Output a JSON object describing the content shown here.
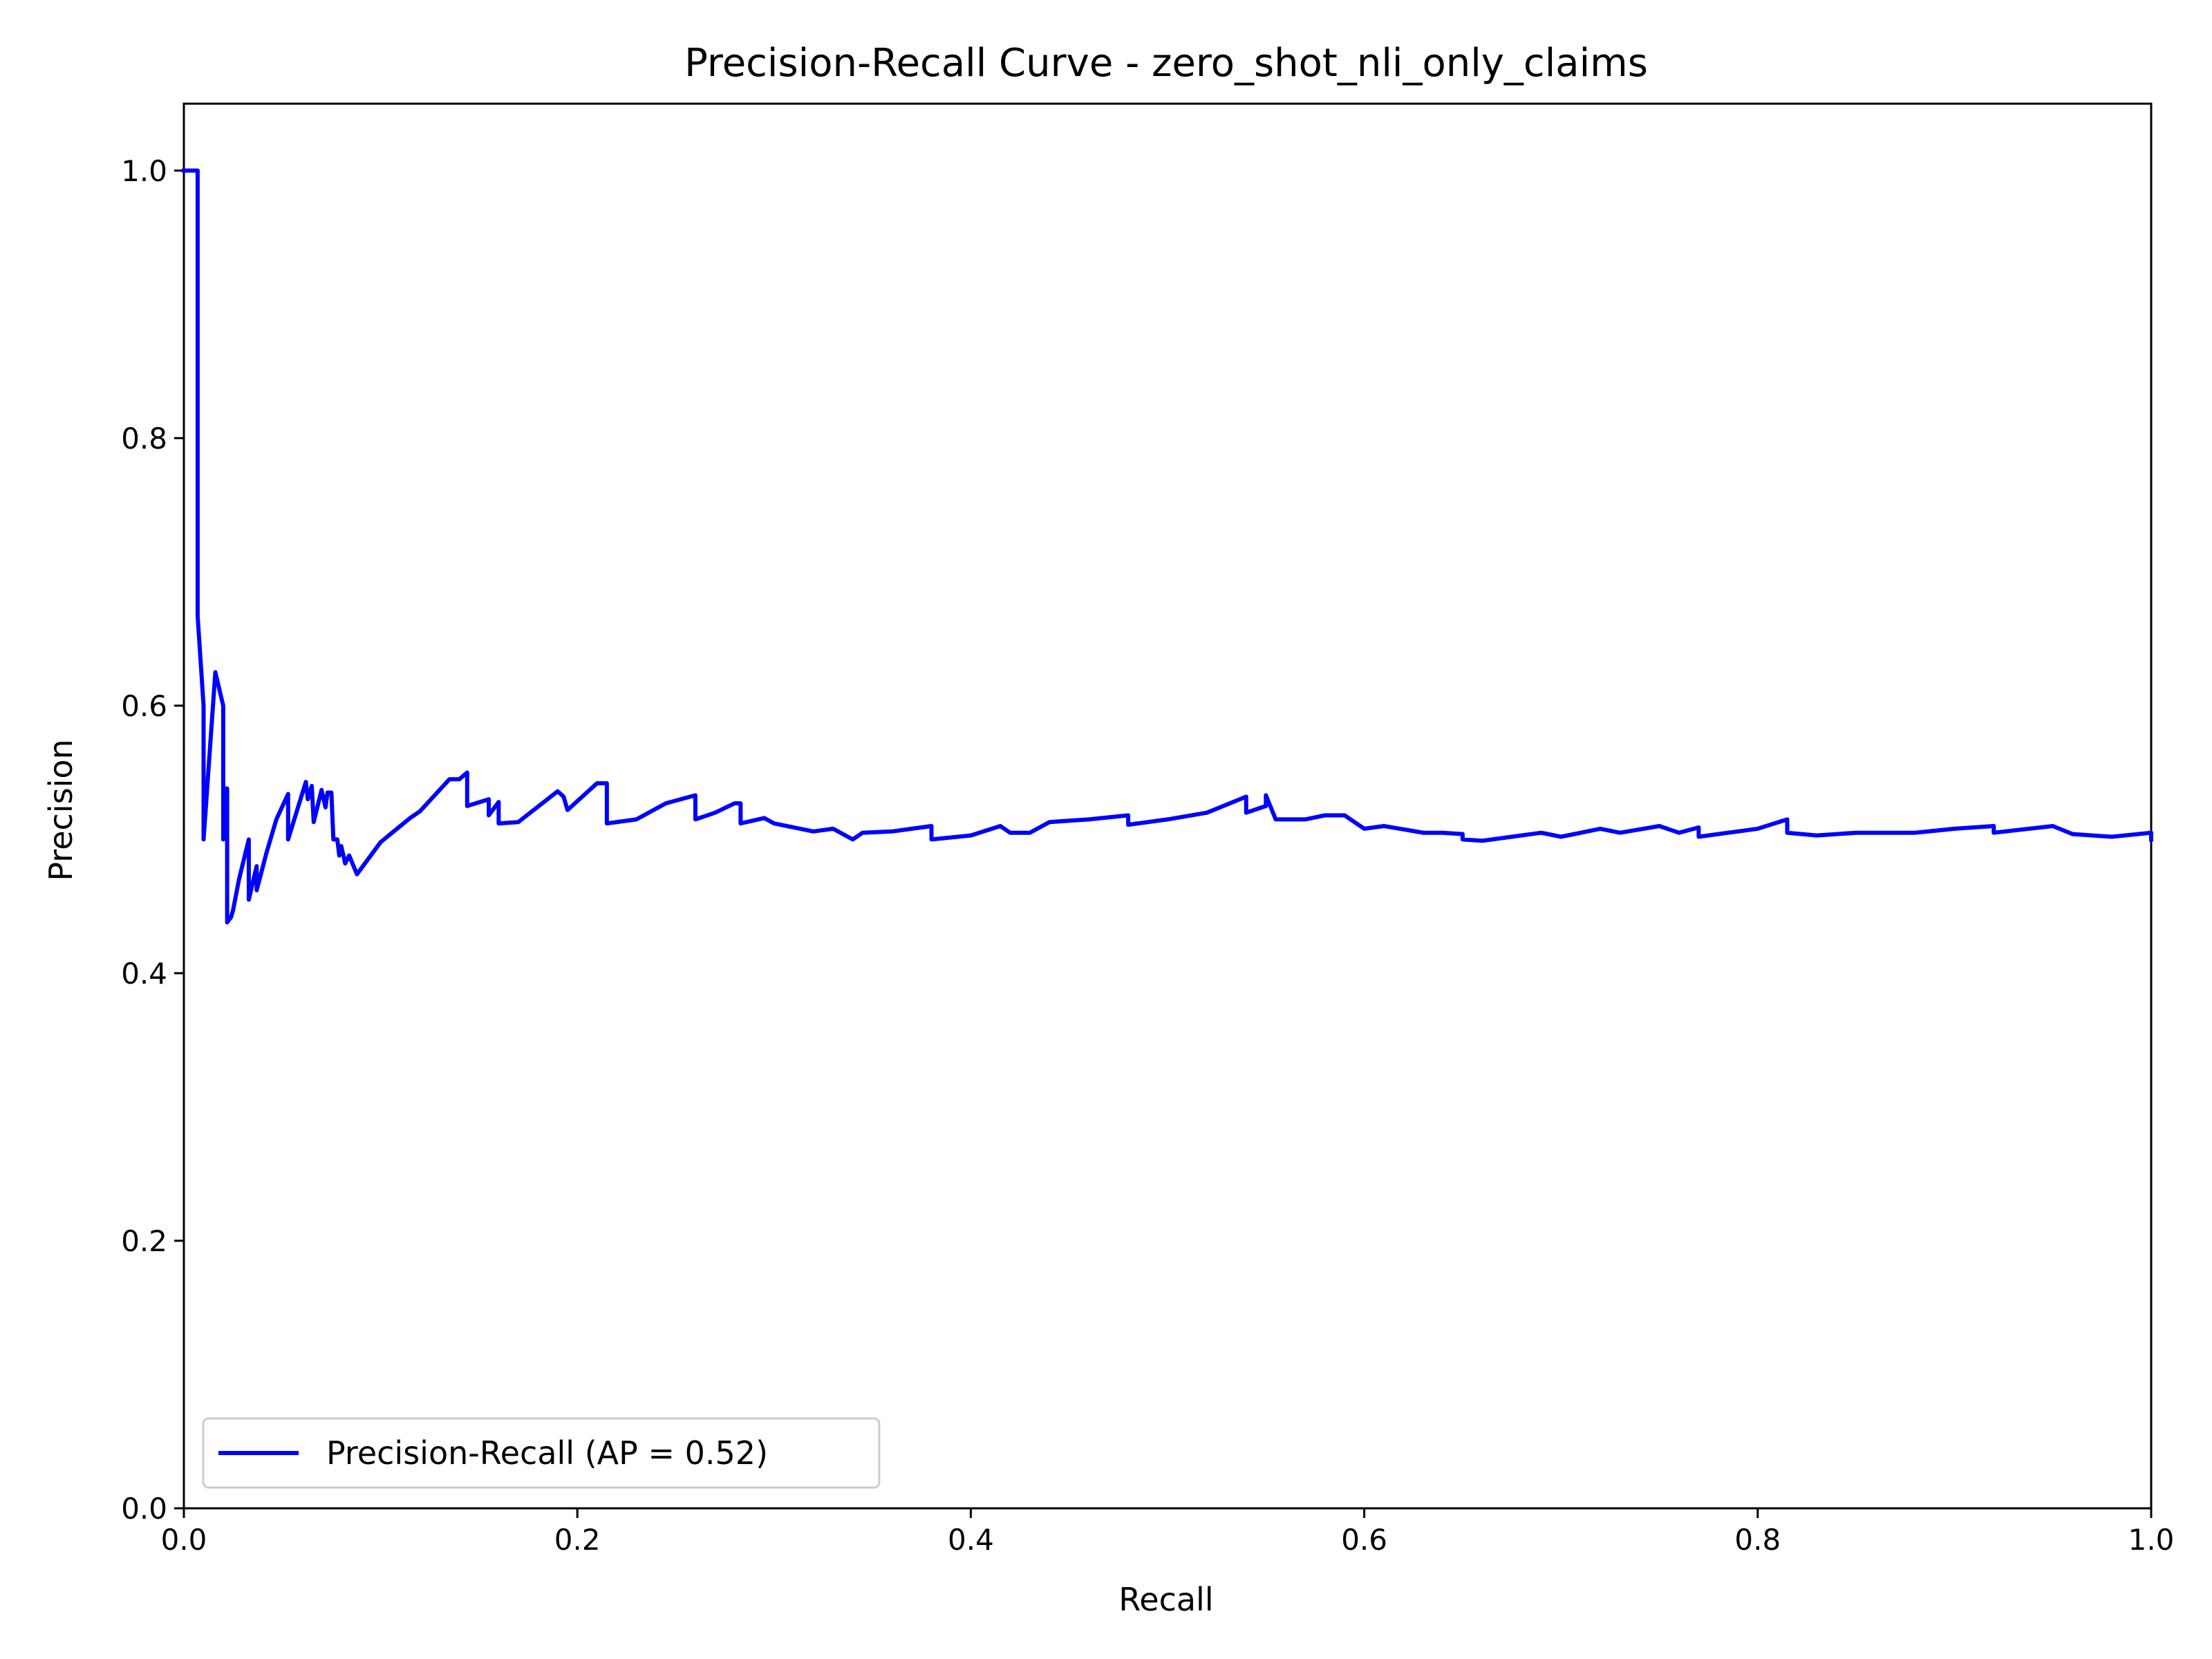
{
  "chart_data": {
    "type": "line",
    "title": "Precision-Recall Curve - zero_shot_nli_only_claims",
    "xlabel": "Recall",
    "ylabel": "Precision",
    "xlim": [
      0.0,
      1.0
    ],
    "ylim": [
      0.0,
      1.05
    ],
    "xticks": [
      {
        "value": 0.0,
        "label": "0.0"
      },
      {
        "value": 0.2,
        "label": "0.2"
      },
      {
        "value": 0.4,
        "label": "0.4"
      },
      {
        "value": 0.6,
        "label": "0.6"
      },
      {
        "value": 0.8,
        "label": "0.8"
      },
      {
        "value": 1.0,
        "label": "1.0"
      }
    ],
    "yticks": [
      {
        "value": 0.0,
        "label": "0.0"
      },
      {
        "value": 0.2,
        "label": "0.2"
      },
      {
        "value": 0.4,
        "label": "0.4"
      },
      {
        "value": 0.6,
        "label": "0.6"
      },
      {
        "value": 0.8,
        "label": "0.8"
      },
      {
        "value": 1.0,
        "label": "1.0"
      }
    ],
    "grid": false,
    "legend_position": "lower-left",
    "series": [
      {
        "name": "Precision-Recall (AP = 0.52)",
        "color": "#0000ff",
        "x": [
          0.0,
          0.007,
          0.007,
          0.01,
          0.01,
          0.016,
          0.02,
          0.02,
          0.021,
          0.022,
          0.022,
          0.024,
          0.025,
          0.028,
          0.033,
          0.033,
          0.037,
          0.037,
          0.042,
          0.047,
          0.053,
          0.053,
          0.058,
          0.062,
          0.063,
          0.065,
          0.066,
          0.07,
          0.072,
          0.073,
          0.075,
          0.076,
          0.078,
          0.079,
          0.08,
          0.082,
          0.084,
          0.088,
          0.1,
          0.11,
          0.115,
          0.12,
          0.135,
          0.14,
          0.144,
          0.144,
          0.155,
          0.155,
          0.16,
          0.16,
          0.17,
          0.19,
          0.193,
          0.195,
          0.21,
          0.215,
          0.215,
          0.23,
          0.245,
          0.26,
          0.26,
          0.27,
          0.28,
          0.283,
          0.283,
          0.295,
          0.3,
          0.32,
          0.33,
          0.34,
          0.345,
          0.36,
          0.37,
          0.38,
          0.38,
          0.4,
          0.415,
          0.42,
          0.43,
          0.44,
          0.46,
          0.48,
          0.48,
          0.5,
          0.52,
          0.54,
          0.54,
          0.55,
          0.55,
          0.555,
          0.57,
          0.58,
          0.59,
          0.6,
          0.61,
          0.63,
          0.64,
          0.65,
          0.65,
          0.66,
          0.69,
          0.7,
          0.72,
          0.73,
          0.75,
          0.76,
          0.77,
          0.77,
          0.8,
          0.815,
          0.815,
          0.83,
          0.85,
          0.88,
          0.9,
          0.92,
          0.92,
          0.95,
          0.96,
          0.98,
          1.0,
          1.0
        ],
        "y": [
          1.0,
          1.0,
          0.667,
          0.6,
          0.5,
          0.625,
          0.6,
          0.5,
          0.538,
          0.538,
          0.438,
          0.442,
          0.447,
          0.47,
          0.5,
          0.455,
          0.48,
          0.462,
          0.49,
          0.515,
          0.534,
          0.5,
          0.524,
          0.543,
          0.53,
          0.54,
          0.513,
          0.537,
          0.524,
          0.535,
          0.535,
          0.5,
          0.5,
          0.488,
          0.495,
          0.482,
          0.488,
          0.474,
          0.498,
          0.51,
          0.516,
          0.521,
          0.545,
          0.545,
          0.55,
          0.525,
          0.53,
          0.518,
          0.528,
          0.512,
          0.513,
          0.536,
          0.532,
          0.522,
          0.542,
          0.542,
          0.512,
          0.515,
          0.527,
          0.533,
          0.515,
          0.52,
          0.527,
          0.527,
          0.512,
          0.516,
          0.512,
          0.506,
          0.508,
          0.5,
          0.505,
          0.506,
          0.508,
          0.51,
          0.5,
          0.503,
          0.51,
          0.505,
          0.505,
          0.513,
          0.515,
          0.518,
          0.511,
          0.515,
          0.52,
          0.532,
          0.52,
          0.525,
          0.533,
          0.515,
          0.515,
          0.518,
          0.518,
          0.508,
          0.51,
          0.505,
          0.505,
          0.504,
          0.5,
          0.499,
          0.505,
          0.502,
          0.508,
          0.505,
          0.51,
          0.505,
          0.509,
          0.502,
          0.508,
          0.515,
          0.505,
          0.503,
          0.505,
          0.505,
          0.508,
          0.51,
          0.505,
          0.51,
          0.504,
          0.502,
          0.505,
          0.5
        ]
      }
    ]
  }
}
